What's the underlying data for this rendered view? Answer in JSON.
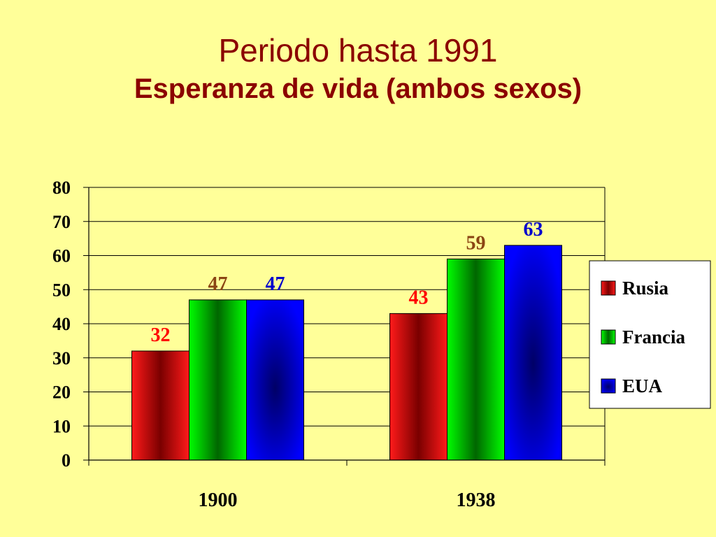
{
  "slide": {
    "title": "Periodo hasta 1991",
    "subtitle": "Esperanza de vida (ambos sexos)"
  },
  "colors": {
    "background": "#ffff99",
    "title": "#8b0000",
    "Rusia": "#ff0000",
    "Francia": "#00cc00",
    "EUA": "#0000ff",
    "label_Rusia": "#ff0000",
    "label_Francia": "#8b4513",
    "label_EUA": "#0000cc"
  },
  "chart_data": {
    "type": "bar",
    "categories": [
      "1900",
      "1938"
    ],
    "series": [
      {
        "name": "Rusia",
        "values": [
          32,
          43
        ]
      },
      {
        "name": "Francia",
        "values": [
          47,
          59
        ]
      },
      {
        "name": "EUA",
        "values": [
          47,
          63
        ]
      }
    ],
    "ylim": [
      0,
      80
    ],
    "yticks": [
      0,
      10,
      20,
      30,
      40,
      50,
      60,
      70,
      80
    ],
    "grid": true,
    "legend": "right",
    "data_labels": true,
    "xlabel": "",
    "ylabel": ""
  }
}
